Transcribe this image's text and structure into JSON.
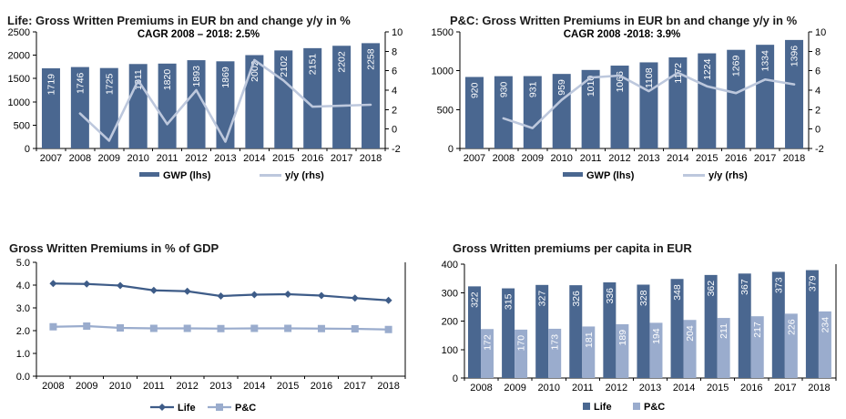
{
  "page": {
    "background": "#FFFFFF"
  },
  "palette": {
    "bar_dark": "#4A6790",
    "line_light": "#BDC8DD",
    "bar_light": "#9AACCD",
    "line_dark": "#3E5C88",
    "axis": "#000000",
    "text": "#000000",
    "bar_label": "#FFFFFF"
  },
  "chart_data": [
    {
      "type": "bar-line",
      "title": "Life: Gross Written Premiums in EUR bn and change y/y in %",
      "annotation": "CAGR 2008 – 2018: 2.5%",
      "categories": [
        "2007",
        "2008",
        "2009",
        "2010",
        "2011",
        "2012",
        "2013",
        "2014",
        "2015",
        "2016",
        "2017",
        "2018"
      ],
      "series": [
        {
          "name": "GWP (lhs)",
          "kind": "bar",
          "axis": "left",
          "values": [
            1719,
            1746,
            1725,
            1811,
            1820,
            1893,
            1869,
            2002,
            2102,
            2151,
            2202,
            2258
          ]
        },
        {
          "name": "y/y (rhs)",
          "kind": "line",
          "axis": "right",
          "values": [
            null,
            1.6,
            -1.2,
            5.0,
            0.5,
            4.0,
            -1.3,
            7.1,
            5.0,
            2.3,
            2.4,
            2.5
          ]
        }
      ],
      "left_axis": {
        "min": 0,
        "max": 2500,
        "step": 500
      },
      "right_axis": {
        "min": -2,
        "max": 10,
        "step": 2
      },
      "legend": [
        "GWP (lhs)",
        "y/y (rhs)"
      ],
      "legend_position": "bottom",
      "grid": false,
      "bar_labels": true
    },
    {
      "type": "bar-line",
      "title": "P&C: Gross Written Premiums in EUR bn and change y/y in %",
      "annotation": "CAGR 2008 -2018: 3.9%",
      "categories": [
        "2007",
        "2008",
        "2009",
        "2010",
        "2011",
        "2012",
        "2013",
        "2014",
        "2015",
        "2016",
        "2017",
        "2018"
      ],
      "series": [
        {
          "name": "GWP (lhs)",
          "kind": "bar",
          "axis": "left",
          "values": [
            920,
            930,
            931,
            959,
            1010,
            1066,
            1108,
            1172,
            1224,
            1269,
            1334,
            1396
          ]
        },
        {
          "name": "y/y (rhs)",
          "kind": "line",
          "axis": "right",
          "values": [
            null,
            1.1,
            0.1,
            3.0,
            5.3,
            5.5,
            3.9,
            5.8,
            4.4,
            3.7,
            5.1,
            4.6
          ]
        }
      ],
      "left_axis": {
        "min": 0,
        "max": 1500,
        "step": 500
      },
      "right_axis": {
        "min": -2,
        "max": 10,
        "step": 2
      },
      "legend": [
        "GWP (lhs)",
        "y/y (rhs)"
      ],
      "legend_position": "bottom",
      "grid": false,
      "bar_labels": true
    },
    {
      "type": "line",
      "title": "Gross Written Premiums in % of GDP",
      "categories": [
        "2008",
        "2009",
        "2010",
        "2011",
        "2012",
        "2013",
        "2014",
        "2015",
        "2016",
        "2017",
        "2018"
      ],
      "series": [
        {
          "name": "Life",
          "marker": "diamond",
          "color_key": "line_dark",
          "values": [
            4.07,
            4.05,
            3.98,
            3.77,
            3.73,
            3.52,
            3.58,
            3.6,
            3.54,
            3.43,
            3.33
          ]
        },
        {
          "name": "P&C",
          "marker": "square",
          "color_key": "bar_light",
          "values": [
            2.17,
            2.2,
            2.12,
            2.1,
            2.1,
            2.09,
            2.1,
            2.1,
            2.09,
            2.08,
            2.05
          ]
        }
      ],
      "y_axis": {
        "min": 0,
        "max": 5,
        "step": 1,
        "decimals": 1
      },
      "legend": [
        "Life",
        "P&C"
      ],
      "legend_position": "bottom",
      "grid": false
    },
    {
      "type": "grouped-bar",
      "title": "Gross Written premiums per capita in EUR",
      "categories": [
        "2008",
        "2009",
        "2010",
        "2011",
        "2012",
        "2013",
        "2014",
        "2015",
        "2016",
        "2017",
        "2018"
      ],
      "series": [
        {
          "name": "Life",
          "color_key": "bar_dark",
          "values": [
            322,
            315,
            327,
            326,
            336,
            328,
            348,
            362,
            367,
            373,
            379
          ]
        },
        {
          "name": "P&C",
          "color_key": "bar_light",
          "values": [
            172,
            170,
            173,
            181,
            189,
            194,
            204,
            211,
            217,
            226,
            234
          ]
        }
      ],
      "y_axis": {
        "min": 0,
        "max": 400,
        "step": 100
      },
      "legend": [
        "Life",
        "P&C"
      ],
      "legend_position": "bottom",
      "grid": false,
      "bar_labels": true
    }
  ]
}
